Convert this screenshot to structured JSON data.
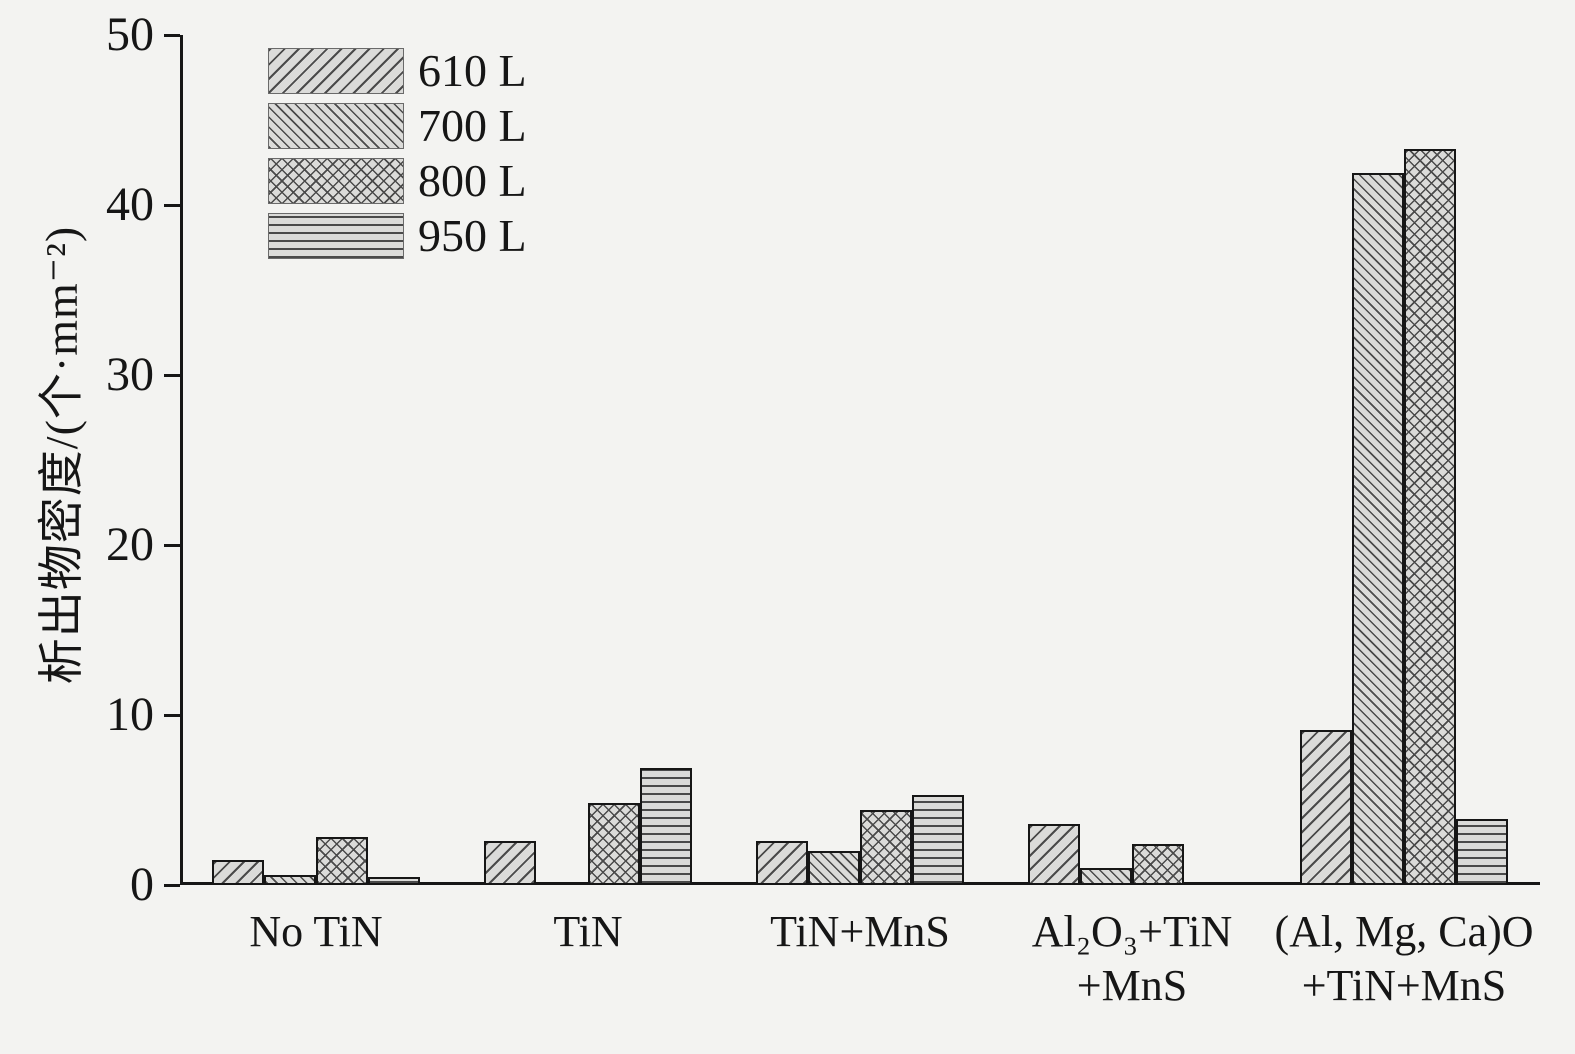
{
  "chart_data": {
    "type": "bar",
    "title": "",
    "xlabel": "",
    "ylabel": "析出物密度/(个·mm⁻²)",
    "ylim": [
      0,
      50
    ],
    "yticks": [
      0,
      10,
      20,
      30,
      40,
      50
    ],
    "grid": false,
    "legend_position": "top-left",
    "categories": [
      "No TiN",
      "TiN",
      "TiN+MnS",
      "Al₂O₃+TiN\n+MnS",
      "(Al, Mg, Ca)O\n+TiN+MnS"
    ],
    "series": [
      {
        "name": "610 L",
        "pattern": "diagonal-up",
        "values": [
          1.5,
          2.6,
          2.6,
          3.6,
          9.1
        ]
      },
      {
        "name": "700 L",
        "pattern": "diagonal-down",
        "values": [
          0.6,
          0,
          2.0,
          1.0,
          41.9
        ]
      },
      {
        "name": "800 L",
        "pattern": "crosshatch",
        "values": [
          2.8,
          4.8,
          4.4,
          2.4,
          43.3
        ]
      },
      {
        "name": "950 L",
        "pattern": "horizontal",
        "values": [
          0.5,
          6.9,
          5.3,
          0,
          3.9
        ]
      }
    ]
  },
  "colors": {
    "background": "#f3f3f1",
    "bar_fill": "#dbdbd9",
    "hatch_line": "#4a4a4a",
    "axis": "#161616"
  }
}
